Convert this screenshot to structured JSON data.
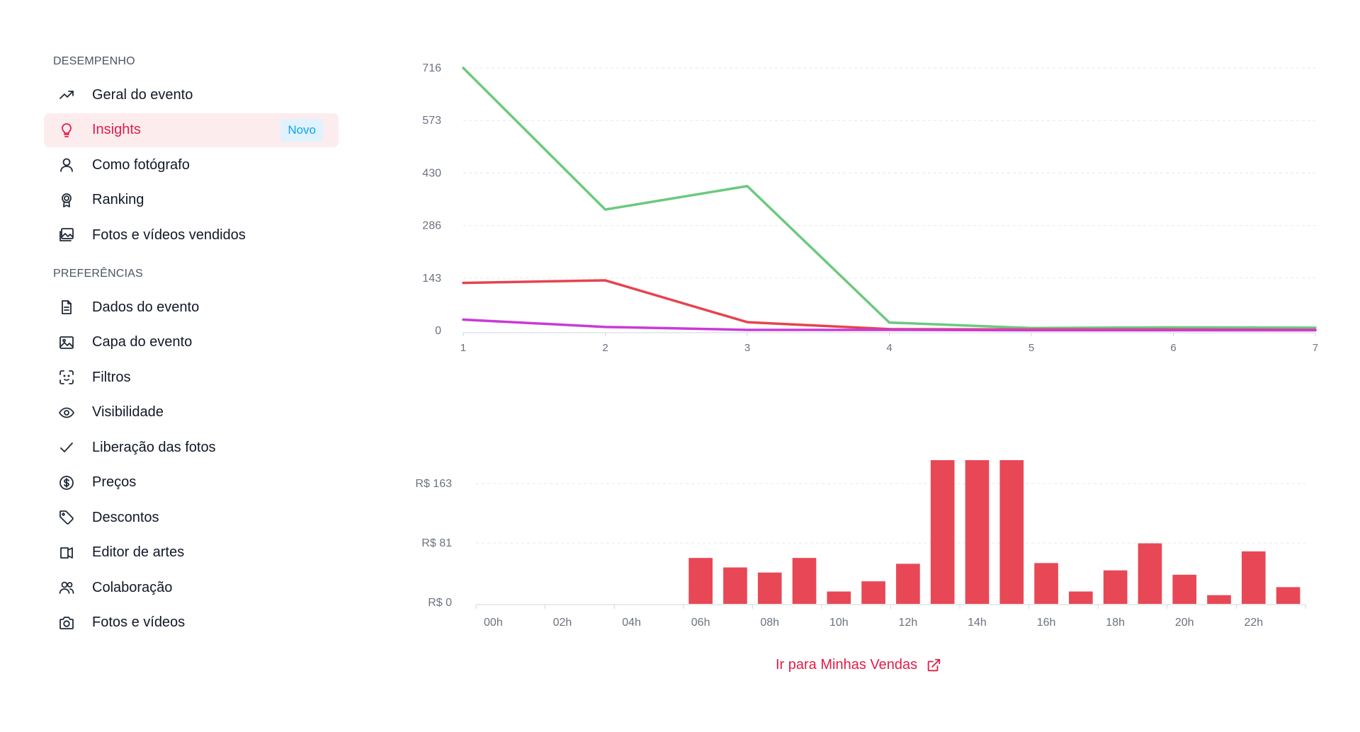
{
  "sidebar": {
    "sections": [
      {
        "title": "DESEMPENHO",
        "items": [
          {
            "label": "Geral do evento",
            "icon": "trending-up-icon"
          },
          {
            "label": "Insights",
            "icon": "lightbulb-icon",
            "active": true,
            "badge": "Novo"
          },
          {
            "label": "Como fotógrafo",
            "icon": "user-icon"
          },
          {
            "label": "Ranking",
            "icon": "award-icon"
          },
          {
            "label": "Fotos e vídeos vendidos",
            "icon": "images-icon"
          }
        ]
      },
      {
        "title": "PREFERÊNCIAS",
        "items": [
          {
            "label": "Dados do evento",
            "icon": "file-text-icon"
          },
          {
            "label": "Capa do evento",
            "icon": "image-icon"
          },
          {
            "label": "Filtros",
            "icon": "face-scan-icon"
          },
          {
            "label": "Visibilidade",
            "icon": "eye-icon"
          },
          {
            "label": "Liberação das fotos",
            "icon": "check-icon"
          },
          {
            "label": "Preços",
            "icon": "dollar-circle-icon"
          },
          {
            "label": "Descontos",
            "icon": "tag-icon"
          },
          {
            "label": "Editor de artes",
            "icon": "brush-icon"
          },
          {
            "label": "Colaboração",
            "icon": "users-icon"
          },
          {
            "label": "Fotos e vídeos",
            "icon": "camera-icon"
          }
        ]
      }
    ]
  },
  "footer": {
    "link_label": "Ir para Minhas Vendas",
    "link_icon": "external-link-icon"
  },
  "colors": {
    "accent": "#e11d48",
    "badge_bg": "#e0f2fe",
    "badge_text": "#0ea5e9",
    "active_bg": "#fdecee",
    "bar": "#e84856",
    "line_green": "#6cc97f",
    "line_red": "#e5434f",
    "line_purple": "#c93ad8"
  },
  "chart_data": [
    {
      "type": "line",
      "x": [
        1,
        2,
        3,
        4,
        5,
        6,
        7
      ],
      "y_ticks": [
        "716",
        "573",
        "430",
        "286",
        "143",
        "0"
      ],
      "ylim": [
        0,
        716
      ],
      "grid": true,
      "series": [
        {
          "color": "#6cc97f",
          "values": [
            716,
            330,
            394,
            22,
            7,
            9,
            8
          ]
        },
        {
          "color": "#e5434f",
          "values": [
            130,
            137,
            23,
            4,
            3,
            3,
            2
          ]
        },
        {
          "color": "#c93ad8",
          "values": [
            30,
            10,
            2,
            2,
            1,
            1,
            1
          ]
        }
      ]
    },
    {
      "type": "bar",
      "categories": [
        "00h",
        "01h",
        "02h",
        "03h",
        "04h",
        "05h",
        "06h",
        "07h",
        "08h",
        "09h",
        "10h",
        "11h",
        "12h",
        "13h",
        "14h",
        "15h",
        "16h",
        "17h",
        "18h",
        "19h",
        "20h",
        "21h",
        "22h",
        "23h"
      ],
      "x_tick_labels": [
        "00h",
        "02h",
        "04h",
        "06h",
        "08h",
        "10h",
        "12h",
        "14h",
        "16h",
        "18h",
        "20h",
        "22h"
      ],
      "y_ticks": [
        "R$ 163",
        "R$ 81",
        "R$ 0"
      ],
      "ylim": [
        0,
        163
      ],
      "grid": true,
      "values": [
        0,
        0,
        0,
        0,
        0,
        0,
        61,
        48,
        41,
        61,
        15,
        29,
        53,
        198,
        198,
        198,
        54,
        15,
        44,
        81,
        38,
        10,
        70,
        21
      ]
    }
  ]
}
